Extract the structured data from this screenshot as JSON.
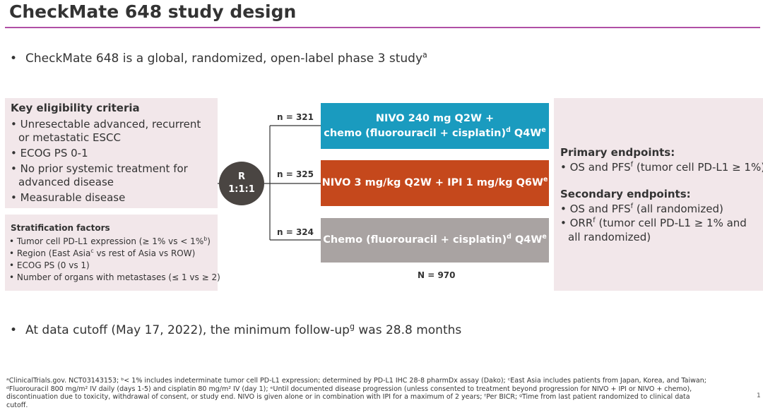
{
  "title": "CheckMate 648 study design",
  "colors": {
    "title_rule": "#b04fa5",
    "panel": "#f2e7ea",
    "arm1": "#1a9bbf",
    "arm2": "#c5481c",
    "arm3": "#a9a3a2",
    "randomization": "#4a4542"
  },
  "intro": {
    "bullet": "•",
    "text": "CheckMate 648 is a global, randomized, open-label phase 3 study",
    "sup": "a"
  },
  "eligibility": {
    "heading": "Key eligibility criteria",
    "items": [
      [
        "Unresectable advanced, recurrent",
        "or metastatic ESCC"
      ],
      [
        "ECOG PS 0-1"
      ],
      [
        "No prior systemic treatment for",
        "advanced disease"
      ],
      [
        "Measurable disease"
      ]
    ]
  },
  "stratification": {
    "heading": "Stratification factors",
    "item1": {
      "pre": "Tumor cell PD-L1 expression (≥ 1% vs < 1%",
      "sup": "b",
      "post": ")"
    },
    "item2": {
      "pre": "Region (East Asia",
      "sup": "c",
      "post": " vs rest of Asia vs ROW)"
    },
    "item3": "ECOG PS (0 vs 1)",
    "item4": "Number of organs with metastases (≤ 1 vs ≥ 2)"
  },
  "randomization": {
    "letter": "R",
    "ratio": "1:1:1"
  },
  "arms": [
    {
      "n_label": "n = 321",
      "line1": "NIVO 240 mg Q2W +",
      "line2_pre": "chemo (fluorouracil + cisplatin)",
      "sup_d": "d",
      "line2_mid": " Q4W",
      "sup_e": "e"
    },
    {
      "n_label": "n = 325",
      "text": "NIVO 3 mg/kg Q2W + IPI 1 mg/kg Q6W",
      "sup_e": "e"
    },
    {
      "n_label": "n = 324",
      "pre": "Chemo (fluorouracil + cisplatin)",
      "sup_d": "d",
      "mid": " Q4W",
      "sup_e": "e"
    }
  ],
  "total": "N = 970",
  "endpoints": {
    "primary_heading": "Primary endpoints:",
    "primary_item": {
      "pre": "OS and PFS",
      "sup": "f",
      "post": " (tumor cell PD-L1 ≥ 1%)"
    },
    "secondary_heading": "Secondary endpoints:",
    "secondary_item1": {
      "pre": "OS and PFS",
      "sup": "f",
      "post": " (all randomized)"
    },
    "secondary_item2": {
      "pre": "ORR",
      "sup": "f",
      "post": " (tumor cell PD-L1 ≥ 1% and",
      "line2": "all randomized)"
    }
  },
  "followup": {
    "bullet": "•",
    "pre": "At data cutoff (May 17, 2022), the minimum follow-up",
    "sup": "g",
    "post": " was 28.8 months"
  },
  "footnotes": {
    "line1": "ᵃClinicalTrials.gov. NCT03143153;  ᵇ< 1% includes indeterminate tumor cell PD-L1 expression; determined by PD-L1 IHC 28-8 pharmDx assay (Dako); ᶜEast Asia includes patients from Japan, Korea, and Taiwan;",
    "line2": "ᵈFluorouracil 800 mg/m² IV daily (days 1-5) and cisplatin 80 mg/m² IV (day 1); ᵉUntil documented disease progression (unless consented to treatment beyond progression for NIVO + IPI or NIVO + chemo),",
    "line3": "discontinuation due to toxicity, withdrawal of consent, or study end. NIVO is given alone or in combination with IPI for a maximum of 2 years; ᶠPer BICR; ᵍTime from last patient randomized to clinical data",
    "line4": "cutoff."
  },
  "page_number": "1"
}
